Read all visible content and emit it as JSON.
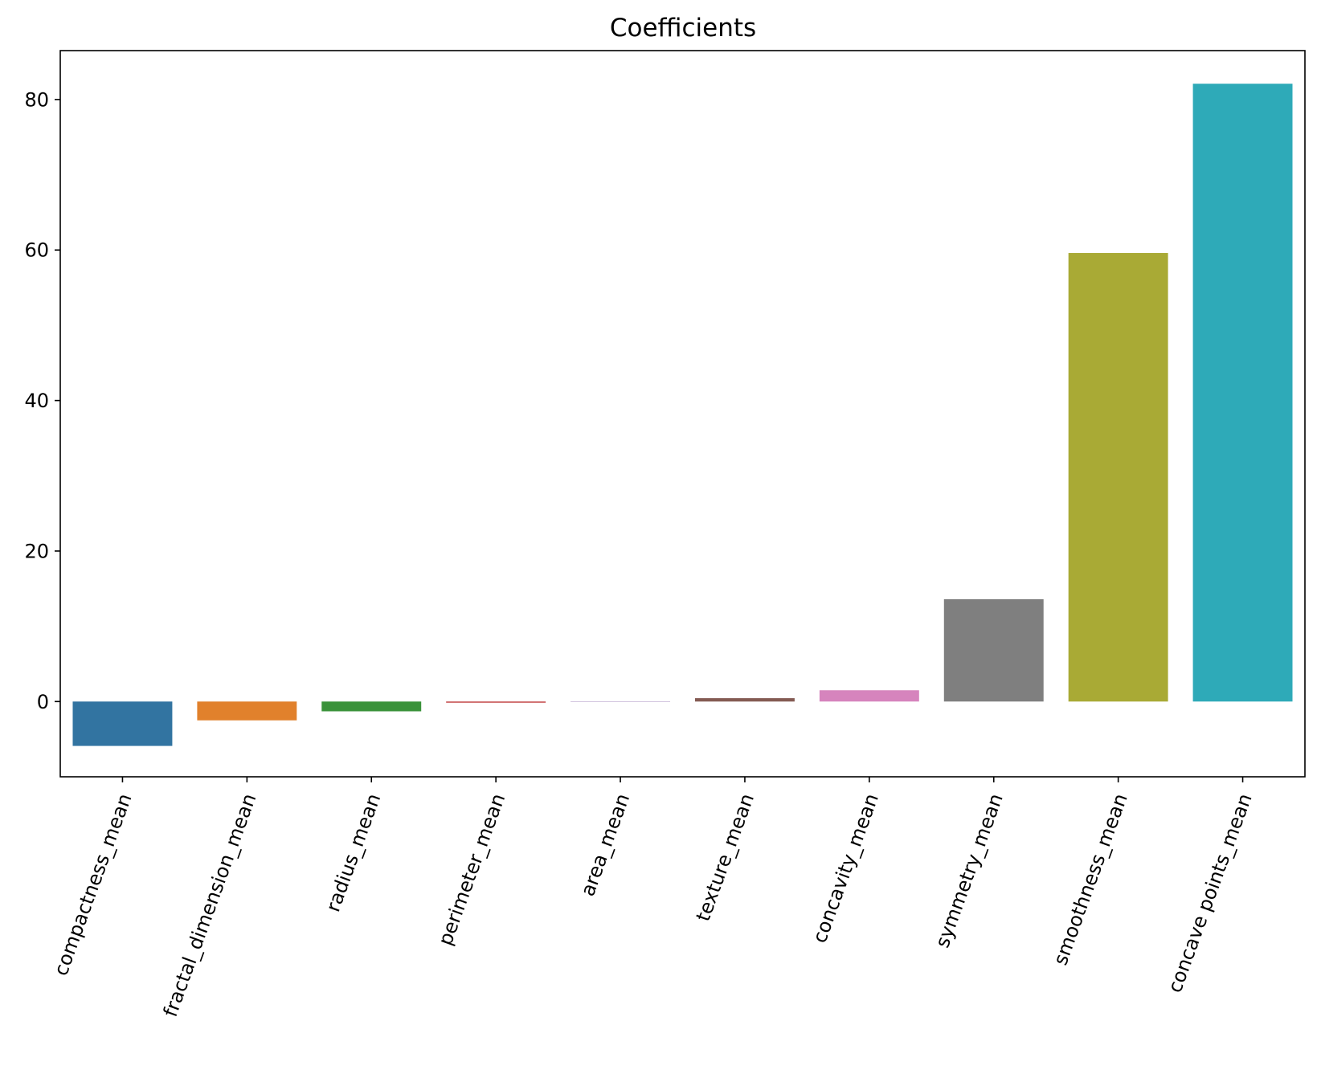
{
  "chart_data": {
    "type": "bar",
    "title": "Coefficients",
    "xlabel": "",
    "ylabel": "",
    "categories": [
      "compactness_mean",
      "fractal_dimension_mean",
      "radius_mean",
      "perimeter_mean",
      "area_mean",
      "texture_mean",
      "concavity_mean",
      "symmetry_mean",
      "smoothness_mean",
      "concave points_mean"
    ],
    "values": [
      -5.9,
      -2.5,
      -1.3,
      -0.15,
      -0.02,
      0.45,
      1.5,
      13.6,
      59.6,
      82.1
    ],
    "colors": [
      "#3274a1",
      "#e1812c",
      "#3a923a",
      "#c03d3e",
      "#9372b2",
      "#845b53",
      "#d684bd",
      "#7f7f7f",
      "#a9aa35",
      "#2eaab8"
    ],
    "ylim": [
      -10,
      86.5
    ],
    "yticks": [
      0,
      20,
      40,
      60,
      80
    ],
    "xtick_rotation": 70,
    "grid": false,
    "legend": "none"
  }
}
